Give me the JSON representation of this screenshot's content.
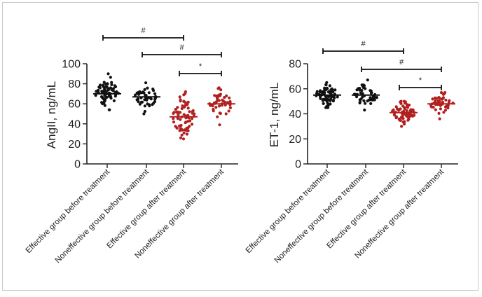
{
  "chart_data": [
    {
      "type": "scatter",
      "subtype": "dot-strip",
      "ylabel": "AngII, ng/mL",
      "ylim": [
        0,
        100
      ],
      "yticks": [
        0,
        20,
        40,
        60,
        80,
        100
      ],
      "categories": [
        "Effective group before treatment",
        "Noneffective group before treatment",
        "Effective group after treatment",
        "Noneffective group after treatment"
      ],
      "series": [
        {
          "name": "Effective group before treatment",
          "color": "#111111",
          "mean": 70,
          "min": 54,
          "max": 90,
          "n": 70
        },
        {
          "name": "Noneffective group before treatment",
          "color": "#111111",
          "mean": 67,
          "min": 50,
          "max": 81,
          "n": 45
        },
        {
          "name": "Effective group after treatment",
          "color": "#b0201e",
          "mean": 47,
          "min": 25,
          "max": 72,
          "n": 70
        },
        {
          "name": "Noneffective group after treatment",
          "color": "#b0201e",
          "mean": 60,
          "min": 39,
          "max": 76,
          "n": 45
        }
      ],
      "significance": [
        {
          "from": 0,
          "to": 2,
          "label": "#"
        },
        {
          "from": 1,
          "to": 3,
          "label": "#"
        },
        {
          "from": 2,
          "to": 3,
          "label": "*"
        }
      ]
    },
    {
      "type": "scatter",
      "subtype": "dot-strip",
      "ylabel": "ET-1, ng/mL",
      "ylim": [
        0,
        80
      ],
      "yticks": [
        0,
        20,
        40,
        60,
        80
      ],
      "categories": [
        "Effective group before treatment",
        "Noneffective group before treatment",
        "Effective group after treatment",
        "Noneffective group after treatment"
      ],
      "series": [
        {
          "name": "Effective group before treatment",
          "color": "#111111",
          "mean": 55,
          "min": 45,
          "max": 65,
          "n": 75
        },
        {
          "name": "Noneffective group before treatment",
          "color": "#111111",
          "mean": 55,
          "min": 43,
          "max": 67,
          "n": 45
        },
        {
          "name": "Effective group after treatment",
          "color": "#b0201e",
          "mean": 41,
          "min": 30,
          "max": 50,
          "n": 75
        },
        {
          "name": "Noneffective group after treatment",
          "color": "#b0201e",
          "mean": 48,
          "min": 36,
          "max": 57,
          "n": 45
        }
      ],
      "significance": [
        {
          "from": 0,
          "to": 2,
          "label": "#"
        },
        {
          "from": 1,
          "to": 3,
          "label": "#"
        },
        {
          "from": 2,
          "to": 3,
          "label": "*"
        }
      ]
    }
  ]
}
